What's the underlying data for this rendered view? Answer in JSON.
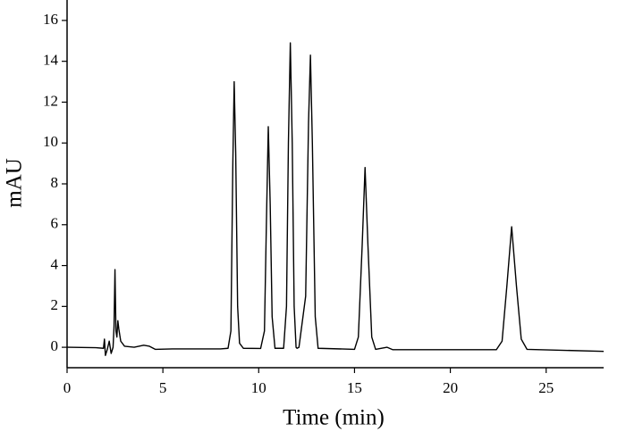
{
  "chart_data": {
    "type": "line",
    "x_label": "Time (min)",
    "y_label": "mAU",
    "xlim": [
      0,
      28
    ],
    "ylim": [
      -1,
      17
    ],
    "xticks": [
      0,
      5,
      10,
      15,
      20,
      25
    ],
    "yticks": [
      0,
      2,
      4,
      6,
      8,
      10,
      12,
      14,
      16
    ],
    "grid": false,
    "series": [
      {
        "color": "#000000",
        "x": [
          0,
          1.5,
          1.9,
          1.95,
          2.0,
          2.1,
          2.2,
          2.3,
          2.4,
          2.45,
          2.5,
          2.55,
          2.6,
          2.65,
          2.7,
          2.8,
          3.0,
          3.5,
          4.0,
          4.3,
          4.6,
          5.5,
          8.0,
          8.4,
          8.55,
          8.65,
          8.72,
          8.8,
          8.9,
          9.0,
          9.2,
          10.1,
          10.3,
          10.4,
          10.5,
          10.6,
          10.7,
          10.85,
          11.3,
          11.45,
          11.55,
          11.65,
          11.75,
          11.85,
          11.95,
          12.0,
          12.1,
          12.45,
          12.6,
          12.7,
          12.8,
          12.95,
          13.1,
          15.0,
          15.2,
          15.4,
          15.55,
          15.7,
          15.9,
          16.1,
          16.7,
          17.0,
          22.4,
          22.7,
          22.95,
          23.2,
          23.45,
          23.7,
          24.0,
          28
        ],
        "values": [
          0,
          -0.02,
          -0.05,
          0.4,
          -0.4,
          -0.1,
          0.3,
          -0.3,
          0.0,
          1.0,
          3.8,
          0.8,
          0.5,
          1.3,
          0.9,
          0.3,
          0.05,
          0.0,
          0.1,
          0.05,
          -0.1,
          -0.08,
          -0.08,
          -0.05,
          0.8,
          9,
          13.0,
          9.5,
          2,
          0.2,
          -0.05,
          -0.06,
          0.8,
          6,
          10.8,
          7,
          1.5,
          -0.05,
          -0.05,
          2,
          10,
          14.9,
          10,
          2,
          0.0,
          -0.05,
          0.0,
          2.5,
          11,
          14.3,
          10,
          1.5,
          -0.05,
          -0.1,
          0.5,
          5,
          8.8,
          5,
          0.5,
          -0.1,
          0.0,
          -0.12,
          -0.12,
          0.3,
          3,
          5.9,
          3,
          0.4,
          -0.1,
          -0.2
        ]
      }
    ]
  }
}
